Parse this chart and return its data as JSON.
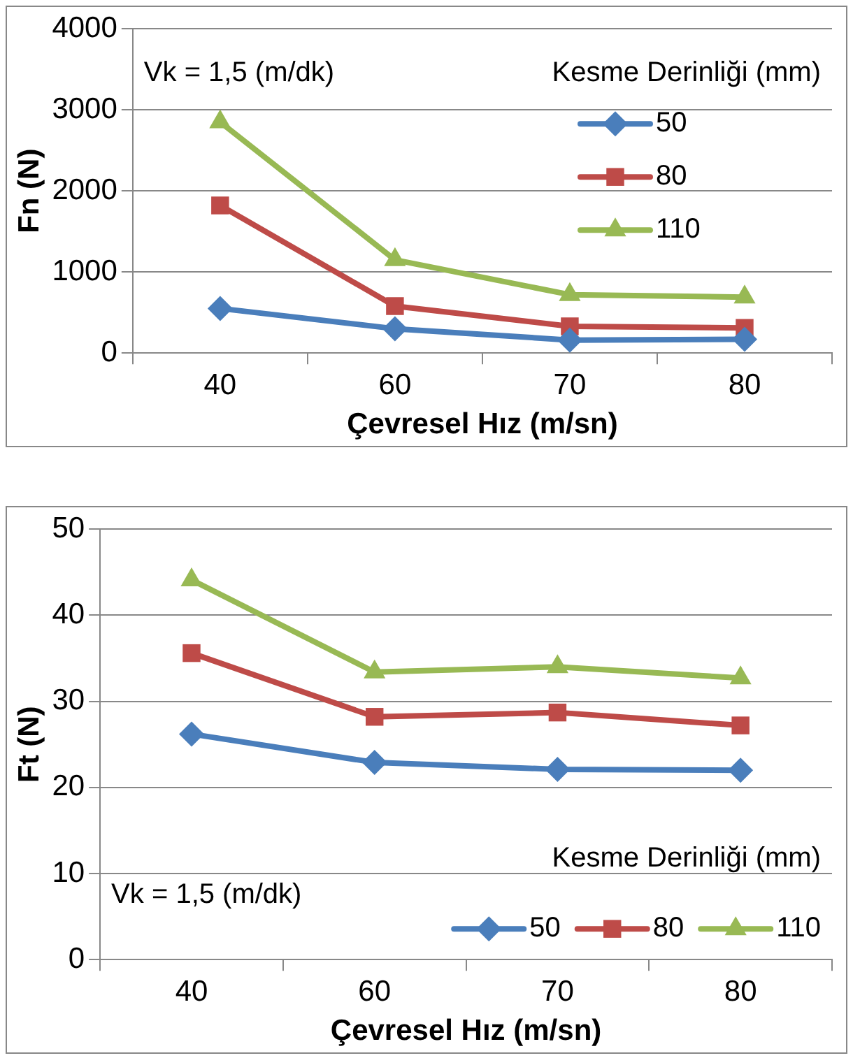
{
  "chart_data": [
    {
      "type": "line",
      "xlabel": "Çevresel Hız (m/sn)",
      "ylabel": "Fn (N)",
      "legend_title": "Kesme Derinliği (mm)",
      "annotations": [
        "Vk = 1,5 (m/dk)"
      ],
      "categories": [
        "40",
        "60",
        "70",
        "80"
      ],
      "ylim": [
        0,
        4000
      ],
      "yticks": [
        0,
        1000,
        2000,
        3000,
        4000
      ],
      "grid": "y",
      "legend": "right",
      "series": [
        {
          "name": "50",
          "color": "#4a7ebb",
          "marker": "diamond",
          "values": [
            550,
            300,
            160,
            170
          ]
        },
        {
          "name": "80",
          "color": "#be4b48",
          "marker": "square",
          "values": [
            1820,
            580,
            330,
            310
          ]
        },
        {
          "name": "110",
          "color": "#98b954",
          "marker": "triangle",
          "values": [
            2850,
            1150,
            720,
            690
          ]
        }
      ]
    },
    {
      "type": "line",
      "xlabel": "Çevresel Hız (m/sn)",
      "ylabel": "Ft (N)",
      "legend_title": "Kesme Derinliği (mm)",
      "annotations": [
        "Vk = 1,5 (m/dk)"
      ],
      "categories": [
        "40",
        "60",
        "70",
        "80"
      ],
      "ylim": [
        0,
        50
      ],
      "yticks": [
        0,
        10,
        20,
        30,
        40,
        50
      ],
      "grid": "y",
      "legend": "bottom",
      "series": [
        {
          "name": "50",
          "color": "#4a7ebb",
          "marker": "diamond",
          "values": [
            26.2,
            22.9,
            22.1,
            22.0
          ]
        },
        {
          "name": "80",
          "color": "#be4b48",
          "marker": "square",
          "values": [
            35.6,
            28.2,
            28.7,
            27.2
          ]
        },
        {
          "name": "110",
          "color": "#98b954",
          "marker": "triangle",
          "values": [
            44.1,
            33.4,
            34.0,
            32.7
          ]
        }
      ]
    }
  ]
}
